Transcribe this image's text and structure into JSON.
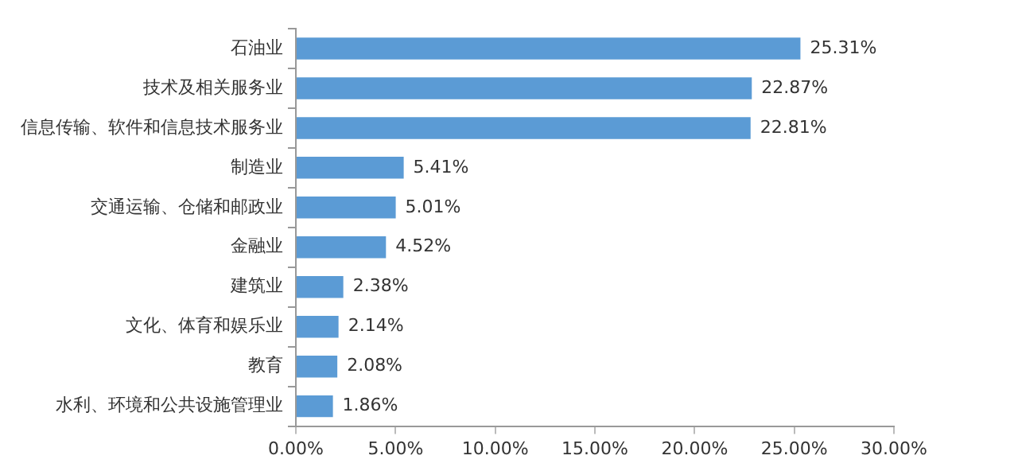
{
  "chart_data": {
    "type": "bar",
    "orientation": "horizontal",
    "categories": [
      "石油业",
      "技术及相关服务业",
      "信息传输、软件和信息技术服务业",
      "制造业",
      "交通运输、仓储和邮政业",
      "金融业",
      "建筑业",
      "文化、体育和娱乐业",
      "教育",
      "水利、环境和公共设施管理业"
    ],
    "values": [
      25.31,
      22.87,
      22.81,
      5.41,
      5.01,
      4.52,
      2.38,
      2.14,
      2.08,
      1.86
    ],
    "value_labels": [
      "25.31%",
      "22.87%",
      "22.81%",
      "5.41%",
      "5.01%",
      "4.52%",
      "2.38%",
      "2.14%",
      "2.08%",
      "1.86%"
    ],
    "color": "#5b9bd5",
    "xlim": [
      0,
      30
    ],
    "xticks": [
      {
        "value": 0,
        "label": "0.00%"
      },
      {
        "value": 5,
        "label": "5.00%"
      },
      {
        "value": 10,
        "label": "10.00%"
      },
      {
        "value": 15,
        "label": "15.00%"
      },
      {
        "value": 20,
        "label": "20.00%"
      },
      {
        "value": 25,
        "label": "25.00%"
      },
      {
        "value": 30,
        "label": "30.00%"
      }
    ],
    "grid": false,
    "legend": false
  }
}
